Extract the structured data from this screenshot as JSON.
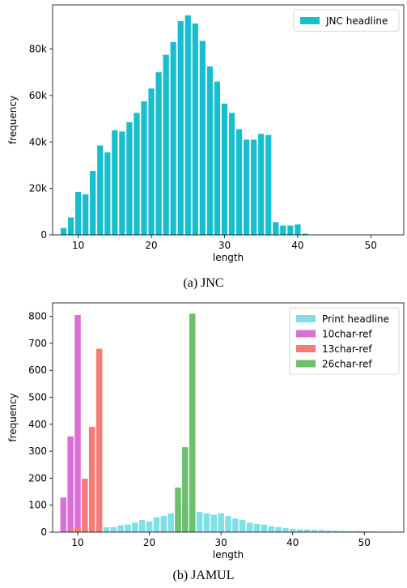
{
  "chart_data": [
    {
      "type": "bar",
      "caption": "(a) JNC",
      "xlabel": "length",
      "ylabel": "frequency",
      "xlim": [
        6.5,
        54.5
      ],
      "ylim": [
        0,
        99000
      ],
      "xticks": [
        10,
        20,
        30,
        40,
        50
      ],
      "xtick_labels": [
        "10",
        "20",
        "30",
        "40",
        "50"
      ],
      "yticks": [
        0,
        20000,
        40000,
        60000,
        80000
      ],
      "ytick_labels": [
        "0",
        "20k",
        "40k",
        "60k",
        "80k"
      ],
      "legend": "top-right",
      "series": [
        {
          "name": "JNC headline",
          "color": "#17becf",
          "x": [
            8,
            9,
            10,
            11,
            12,
            13,
            14,
            15,
            16,
            17,
            18,
            19,
            20,
            21,
            22,
            23,
            24,
            25,
            26,
            27,
            28,
            29,
            30,
            31,
            32,
            33,
            34,
            35,
            36,
            37,
            38,
            39,
            40,
            41
          ],
          "values": [
            3000,
            7500,
            18500,
            17500,
            27500,
            38500,
            35500,
            45000,
            44500,
            48500,
            52500,
            57500,
            63000,
            70000,
            77500,
            83000,
            92000,
            94500,
            91000,
            83500,
            72500,
            66000,
            56500,
            52500,
            45500,
            41000,
            41000,
            43500,
            43000,
            5500,
            4000,
            4000,
            4500,
            500
          ]
        }
      ]
    },
    {
      "type": "bar",
      "caption": "(b) JAMUL",
      "xlabel": "length",
      "ylabel": "frequency",
      "xlim": [
        6.5,
        55.5
      ],
      "ylim": [
        0,
        850
      ],
      "xticks": [
        10,
        20,
        30,
        40,
        50
      ],
      "xtick_labels": [
        "10",
        "20",
        "30",
        "40",
        "50"
      ],
      "yticks": [
        0,
        100,
        200,
        300,
        400,
        500,
        600,
        700,
        800
      ],
      "ytick_labels": [
        "0",
        "100",
        "200",
        "300",
        "400",
        "500",
        "600",
        "700",
        "800"
      ],
      "legend": "top-right",
      "series": [
        {
          "name": "Print headline",
          "color": "#7fe0e6",
          "x": [
            8,
            9,
            10,
            11,
            12,
            13,
            14,
            15,
            16,
            17,
            18,
            19,
            20,
            21,
            22,
            23,
            24,
            25,
            26,
            27,
            28,
            29,
            30,
            31,
            32,
            33,
            34,
            35,
            36,
            37,
            38,
            39,
            40,
            41,
            42,
            43,
            44,
            45,
            46,
            47,
            48,
            49,
            50,
            51,
            52,
            53,
            54
          ],
          "values": [
            5,
            8,
            10,
            10,
            12,
            20,
            18,
            18,
            25,
            28,
            35,
            45,
            40,
            55,
            60,
            70,
            85,
            100,
            100,
            75,
            70,
            65,
            70,
            60,
            50,
            45,
            35,
            30,
            28,
            22,
            18,
            15,
            12,
            10,
            10,
            8,
            8,
            6,
            5,
            5,
            4,
            4,
            3,
            3,
            2,
            2,
            2
          ]
        },
        {
          "name": "10char-ref",
          "color": "#da70d6",
          "x": [
            8,
            9,
            10
          ],
          "values": [
            128,
            355,
            805
          ]
        },
        {
          "name": "13char-ref",
          "color": "#f67b78",
          "x": [
            9,
            10,
            11,
            12,
            13
          ],
          "values": [
            10,
            15,
            198,
            390,
            680
          ]
        },
        {
          "name": "26char-ref",
          "color": "#6cbf6c",
          "x": [
            24,
            25,
            26
          ],
          "values": [
            165,
            315,
            810
          ]
        }
      ]
    }
  ],
  "captions": {
    "a": "(a) JNC",
    "b": "(b) JAMUL"
  }
}
